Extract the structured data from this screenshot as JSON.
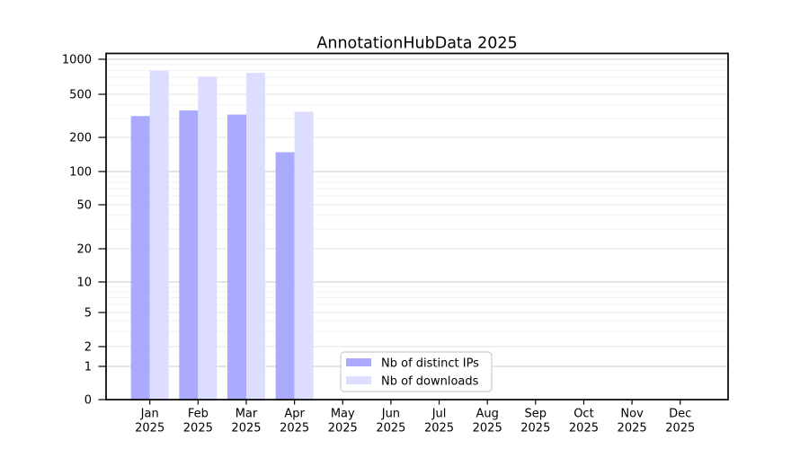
{
  "title": "AnnotationHubData 2025",
  "chart_data": {
    "type": "bar",
    "title": "AnnotationHubData 2025",
    "categories": [
      "Jan",
      "Feb",
      "Mar",
      "Apr",
      "May",
      "Jun",
      "Jul",
      "Aug",
      "Sep",
      "Oct",
      "Nov",
      "Dec"
    ],
    "category_year": "2025",
    "series": [
      {
        "name": "Nb of distinct IPs",
        "color": "#aaaaff",
        "values": [
          315,
          355,
          325,
          148,
          null,
          null,
          null,
          null,
          null,
          null,
          null,
          null
        ]
      },
      {
        "name": "Nb of downloads",
        "color": "#ddddff",
        "values": [
          800,
          710,
          765,
          345,
          null,
          null,
          null,
          null,
          null,
          null,
          null,
          null
        ]
      }
    ],
    "y_axis": {
      "scale": "log",
      "tick_values": [
        0,
        1,
        2,
        5,
        10,
        20,
        50,
        100,
        200,
        500,
        1000
      ],
      "tick_labels": [
        "0",
        "1",
        "2",
        "5",
        "10",
        "20",
        "50",
        "100",
        "200",
        "500",
        "1000"
      ],
      "ylim": [
        0,
        1000
      ]
    },
    "xlabel": "",
    "ylabel": "",
    "grid": "on",
    "legend_position": "inside-bottom-center"
  },
  "colors": {
    "bar_distinct_ips": "#aaaaff",
    "bar_downloads": "#ddddff",
    "grid_decade": "#c9c9c9",
    "grid_labeled": "#e3e3e3",
    "grid_minor": "#f2f2f2",
    "axis": "#000000",
    "legend_border": "#cccccc",
    "background": "#ffffff"
  }
}
